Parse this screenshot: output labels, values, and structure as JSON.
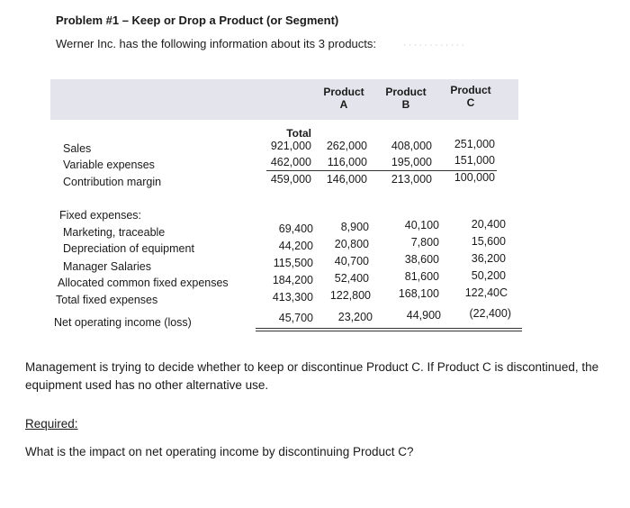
{
  "title": "Problem #1 – Keep or Drop a Product (or Segment)",
  "intro": "Werner Inc. has the following information about its 3 products:",
  "columns": {
    "total": "Total",
    "a": "Product\nA",
    "b": "Product\nB",
    "c": "Product\nC"
  },
  "income_rows": [
    {
      "label": "Sales",
      "total": "921,000",
      "a": "262,000",
      "b": "408,000",
      "c": "251,000"
    },
    {
      "label": "Variable expenses",
      "total": "462,000",
      "a": "116,000",
      "b": "195,000",
      "c": "151,000"
    },
    {
      "label": "Contribution margin",
      "total": "459,000",
      "a": "146,000",
      "b": "213,000",
      "c": "100,000"
    }
  ],
  "fixed_heading": "Fixed expenses:",
  "fixed_rows": [
    {
      "label": "Marketing, traceable",
      "total": "69,400",
      "a": "8,900",
      "b": "40,100",
      "c": "20,400"
    },
    {
      "label": "Depreciation of equipment",
      "total": "44,200",
      "a": "20,800",
      "b": "7,800",
      "c": "15,600"
    },
    {
      "label": "Manager Salaries",
      "total": "115,500",
      "a": "40,700",
      "b": "38,600",
      "c": "36,200"
    },
    {
      "label": "Allocated common fixed expenses",
      "total": "184,200",
      "a": "52,400",
      "b": "81,600",
      "c": "50,200"
    },
    {
      "label": "Total fixed expenses",
      "total": "413,300",
      "a": "122,800",
      "b": "168,100",
      "c": "122,40C"
    }
  ],
  "net_row": {
    "label": "Net operating income (loss)",
    "total": "45,700",
    "a": "23,200",
    "b": "44,900",
    "c": "(22,400)"
  },
  "paragraph": "Management is trying to decide whether to keep or discontinue Product C. If Product C is discontinued, the equipment used has no other alternative use.",
  "required_label": "Required:",
  "question": "What is the impact on net operating income by discontinuing Product C?"
}
